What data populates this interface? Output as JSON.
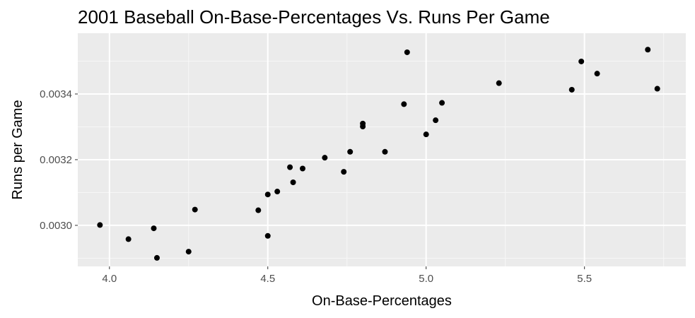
{
  "chart_data": {
    "type": "scatter",
    "title": "2001 Baseball On-Base-Percentages Vs. Runs Per Game",
    "xlabel": "On-Base-Percentages",
    "ylabel": "Runs per Game",
    "xlim": [
      3.9,
      5.82
    ],
    "ylim": [
      0.002875,
      0.003585
    ],
    "x_ticks": [
      4.0,
      4.5,
      5.0,
      5.5
    ],
    "x_tick_labels": [
      "4.0",
      "4.5",
      "5.0",
      "5.5"
    ],
    "y_ticks": [
      0.003,
      0.0032,
      0.0034
    ],
    "y_tick_labels": [
      "0.0030",
      "0.0032",
      "0.0034"
    ],
    "grid": true,
    "point_color": "#000000",
    "panel_background": "#ebebeb",
    "points": [
      {
        "x": 3.97,
        "y": 0.003001
      },
      {
        "x": 4.06,
        "y": 0.002958
      },
      {
        "x": 4.14,
        "y": 0.002991
      },
      {
        "x": 4.15,
        "y": 0.002901
      },
      {
        "x": 4.25,
        "y": 0.00292
      },
      {
        "x": 4.27,
        "y": 0.003048
      },
      {
        "x": 4.47,
        "y": 0.003046
      },
      {
        "x": 4.5,
        "y": 0.003094
      },
      {
        "x": 4.5,
        "y": 0.002968
      },
      {
        "x": 4.53,
        "y": 0.003103
      },
      {
        "x": 4.57,
        "y": 0.003177
      },
      {
        "x": 4.58,
        "y": 0.003131
      },
      {
        "x": 4.61,
        "y": 0.003173
      },
      {
        "x": 4.68,
        "y": 0.003206
      },
      {
        "x": 4.74,
        "y": 0.003163
      },
      {
        "x": 4.76,
        "y": 0.003224
      },
      {
        "x": 4.8,
        "y": 0.003301
      },
      {
        "x": 4.8,
        "y": 0.00331
      },
      {
        "x": 4.87,
        "y": 0.003224
      },
      {
        "x": 4.93,
        "y": 0.003369
      },
      {
        "x": 4.94,
        "y": 0.003527
      },
      {
        "x": 5.0,
        "y": 0.003277
      },
      {
        "x": 5.03,
        "y": 0.00332
      },
      {
        "x": 5.05,
        "y": 0.003373
      },
      {
        "x": 5.23,
        "y": 0.003433
      },
      {
        "x": 5.46,
        "y": 0.003413
      },
      {
        "x": 5.49,
        "y": 0.003499
      },
      {
        "x": 5.54,
        "y": 0.003462
      },
      {
        "x": 5.7,
        "y": 0.003535
      },
      {
        "x": 5.73,
        "y": 0.003416
      }
    ]
  }
}
